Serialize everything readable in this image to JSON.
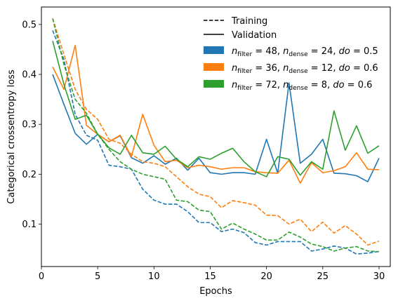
{
  "chart_data": {
    "type": "line",
    "xlabel": "Epochs",
    "ylabel": "Categorical crossentropy loss",
    "xlim": [
      0,
      31
    ],
    "ylim": [
      0.015,
      0.535
    ],
    "xticks": [
      0,
      5,
      10,
      15,
      20,
      25,
      30
    ],
    "yticks": [
      0.1,
      0.2,
      0.3,
      0.4,
      0.5
    ],
    "x": [
      1,
      2,
      3,
      4,
      5,
      6,
      7,
      8,
      9,
      10,
      11,
      12,
      13,
      14,
      15,
      16,
      17,
      18,
      19,
      20,
      21,
      22,
      23,
      24,
      25,
      26,
      27,
      28,
      29,
      30
    ],
    "legend": {
      "placement": "top-center",
      "style_entries": [
        {
          "label": "Training",
          "dash": "dashed"
        },
        {
          "label": "Validation",
          "dash": "solid"
        }
      ]
    },
    "configs": [
      {
        "color": "#1f77b4",
        "legend": {
          "nf": "48",
          "nd": "24",
          "do": "0.5"
        },
        "training": [
          0.488,
          0.43,
          0.32,
          0.278,
          0.268,
          0.218,
          0.215,
          0.21,
          0.17,
          0.148,
          0.14,
          0.14,
          0.125,
          0.103,
          0.103,
          0.085,
          0.09,
          0.083,
          0.063,
          0.058,
          0.065,
          0.065,
          0.065,
          0.046,
          0.05,
          0.056,
          0.052,
          0.04,
          0.042,
          0.045
        ],
        "validation": [
          0.4,
          0.34,
          0.282,
          0.26,
          0.28,
          0.265,
          0.277,
          0.233,
          0.222,
          0.237,
          0.22,
          0.232,
          0.208,
          0.232,
          0.203,
          0.2,
          0.203,
          0.203,
          0.2,
          0.27,
          0.202,
          0.383,
          0.222,
          0.24,
          0.27,
          0.202,
          0.201,
          0.197,
          0.185,
          0.232
        ]
      },
      {
        "color": "#ff7f0e",
        "legend": {
          "nf": "36",
          "nd": "12",
          "do": "0.6"
        },
        "training": [
          0.512,
          0.44,
          0.37,
          0.33,
          0.31,
          0.27,
          0.262,
          0.24,
          0.225,
          0.222,
          0.215,
          0.195,
          0.175,
          0.16,
          0.155,
          0.133,
          0.147,
          0.143,
          0.138,
          0.118,
          0.117,
          0.1,
          0.11,
          0.085,
          0.104,
          0.082,
          0.097,
          0.08,
          0.058,
          0.066
        ],
        "validation": [
          0.415,
          0.37,
          0.458,
          0.298,
          0.28,
          0.265,
          0.278,
          0.235,
          0.32,
          0.258,
          0.225,
          0.228,
          0.213,
          0.218,
          0.215,
          0.21,
          0.213,
          0.213,
          0.205,
          0.203,
          0.202,
          0.228,
          0.182,
          0.223,
          0.203,
          0.207,
          0.215,
          0.243,
          0.21,
          0.209
        ]
      },
      {
        "color": "#2ca02c",
        "legend": {
          "nf": "72",
          "nd": "8",
          "do": "0.6"
        },
        "training": [
          0.512,
          0.42,
          0.35,
          0.322,
          0.28,
          0.25,
          0.225,
          0.21,
          0.2,
          0.195,
          0.19,
          0.148,
          0.145,
          0.128,
          0.125,
          0.09,
          0.102,
          0.09,
          0.08,
          0.068,
          0.068,
          0.084,
          0.074,
          0.06,
          0.055,
          0.046,
          0.052,
          0.055,
          0.046,
          0.045
        ],
        "validation": [
          0.467,
          0.38,
          0.31,
          0.318,
          0.28,
          0.253,
          0.24,
          0.278,
          0.243,
          0.24,
          0.256,
          0.23,
          0.215,
          0.235,
          0.23,
          0.242,
          0.252,
          0.225,
          0.205,
          0.195,
          0.235,
          0.23,
          0.198,
          0.225,
          0.21,
          0.327,
          0.248,
          0.297,
          0.242,
          0.257
        ]
      }
    ]
  }
}
